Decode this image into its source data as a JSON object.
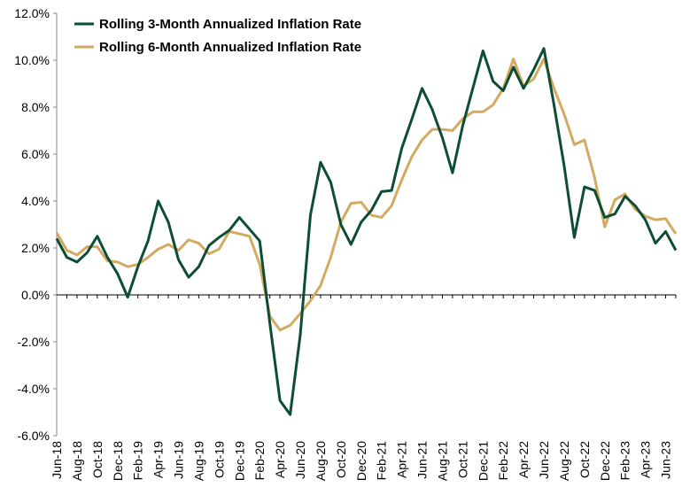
{
  "chart_data": {
    "type": "line",
    "title": "",
    "xlabel": "",
    "ylabel": "",
    "ylim": [
      -6,
      12
    ],
    "yticks": [
      -6,
      -4,
      -2,
      0,
      2,
      4,
      6,
      8,
      10,
      12
    ],
    "ytick_labels": [
      "-6.0%",
      "-4.0%",
      "-2.0%",
      "0.0%",
      "2.0%",
      "4.0%",
      "6.0%",
      "8.0%",
      "10.0%",
      "12.0%"
    ],
    "grid": false,
    "legend_position": "top-left",
    "x": [
      "Jun-18",
      "Jul-18",
      "Aug-18",
      "Sep-18",
      "Oct-18",
      "Nov-18",
      "Dec-18",
      "Jan-19",
      "Feb-19",
      "Mar-19",
      "Apr-19",
      "May-19",
      "Jun-19",
      "Jul-19",
      "Aug-19",
      "Sep-19",
      "Oct-19",
      "Nov-19",
      "Dec-19",
      "Jan-20",
      "Feb-20",
      "Mar-20",
      "Apr-20",
      "May-20",
      "Jun-20",
      "Jul-20",
      "Aug-20",
      "Sep-20",
      "Oct-20",
      "Nov-20",
      "Dec-20",
      "Jan-21",
      "Feb-21",
      "Mar-21",
      "Apr-21",
      "May-21",
      "Jun-21",
      "Jul-21",
      "Aug-21",
      "Sep-21",
      "Oct-21",
      "Nov-21",
      "Dec-21",
      "Jan-22",
      "Feb-22",
      "Mar-22",
      "Apr-22",
      "May-22",
      "Jun-22",
      "Jul-22",
      "Aug-22",
      "Sep-22",
      "Oct-22",
      "Nov-22",
      "Dec-22",
      "Jan-23",
      "Feb-23",
      "Mar-23",
      "Apr-23",
      "May-23",
      "Jun-23",
      "Jul-23"
    ],
    "xtick_labels": [
      "Jun-18",
      "",
      "Aug-18",
      "",
      "Oct-18",
      "",
      "Dec-18",
      "",
      "Feb-19",
      "",
      "Apr-19",
      "",
      "Jun-19",
      "",
      "Aug-19",
      "",
      "Oct-19",
      "",
      "Dec-19",
      "",
      "Feb-20",
      "",
      "Apr-20",
      "",
      "Jun-20",
      "",
      "Aug-20",
      "",
      "Oct-20",
      "",
      "Dec-20",
      "",
      "Feb-21",
      "",
      "Apr-21",
      "",
      "Jun-21",
      "",
      "Aug-21",
      "",
      "Oct-21",
      "",
      "Dec-21",
      "",
      "Feb-22",
      "",
      "Apr-22",
      "",
      "Jun-22",
      "",
      "Aug-22",
      "",
      "Oct-22",
      "",
      "Dec-22",
      "",
      "Feb-23",
      "",
      "Apr-23",
      "",
      "Jun-23",
      ""
    ],
    "series": [
      {
        "name": "Rolling 3-Month Annualized Inflation Rate",
        "color": "#0d4d33",
        "values": [
          2.4,
          1.6,
          1.4,
          1.8,
          2.5,
          1.6,
          0.9,
          -0.1,
          1.2,
          2.3,
          4.0,
          3.1,
          1.5,
          0.75,
          1.2,
          2.1,
          2.45,
          2.75,
          3.3,
          2.8,
          2.3,
          -1.2,
          -4.5,
          -5.1,
          -1.7,
          3.4,
          5.65,
          4.8,
          3.0,
          2.15,
          3.1,
          3.6,
          4.4,
          4.45,
          6.25,
          7.5,
          8.8,
          7.9,
          6.7,
          5.2,
          7.2,
          8.8,
          10.4,
          9.1,
          8.7,
          9.7,
          8.8,
          9.6,
          10.5,
          8.1,
          5.5,
          2.45,
          4.6,
          4.45,
          3.3,
          3.45,
          4.2,
          3.8,
          3.2,
          2.2,
          2.7,
          1.9
        ]
      },
      {
        "name": "Rolling 6-Month Annualized Inflation Rate",
        "color": "#d4aa62",
        "values": [
          2.65,
          1.9,
          1.7,
          2.05,
          2.05,
          1.45,
          1.4,
          1.2,
          1.3,
          1.6,
          1.95,
          2.15,
          1.9,
          2.35,
          2.2,
          1.75,
          1.95,
          2.7,
          2.6,
          2.5,
          1.3,
          -0.9,
          -1.5,
          -1.3,
          -0.8,
          -0.25,
          0.4,
          1.6,
          3.1,
          3.9,
          3.95,
          3.4,
          3.3,
          3.8,
          4.9,
          5.9,
          6.6,
          7.05,
          7.05,
          7.0,
          7.5,
          7.8,
          7.8,
          8.1,
          8.8,
          10.05,
          8.9,
          9.2,
          10.05,
          8.8,
          7.7,
          6.4,
          6.6,
          5.0,
          2.9,
          4.05,
          4.3,
          3.65,
          3.35,
          3.2,
          3.25,
          2.6
        ]
      }
    ]
  }
}
